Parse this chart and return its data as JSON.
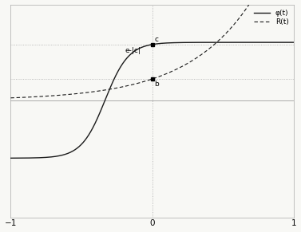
{
  "xlim": [
    -1,
    1
  ],
  "ylim": [
    -5.5,
    4.5
  ],
  "xticks": [
    -1,
    0,
    1
  ],
  "phi_color": "#1a1a1a",
  "R_color": "#1a1a1a",
  "dotted_color": "#aaaaaa",
  "axis_color": "#aaaaaa",
  "bg_color": "#f8f8f5",
  "legend_phi": "φ(t)",
  "legend_R": "R(t)",
  "label_c": "c",
  "label_elc": "e-|c|",
  "label_b": "b",
  "e_val": 2.718281828459045,
  "figsize": [
    3.77,
    2.91
  ],
  "dpi": 100,
  "phi_A": 2.718281828459045,
  "phi_k": 8.0,
  "R_k": 3.5
}
